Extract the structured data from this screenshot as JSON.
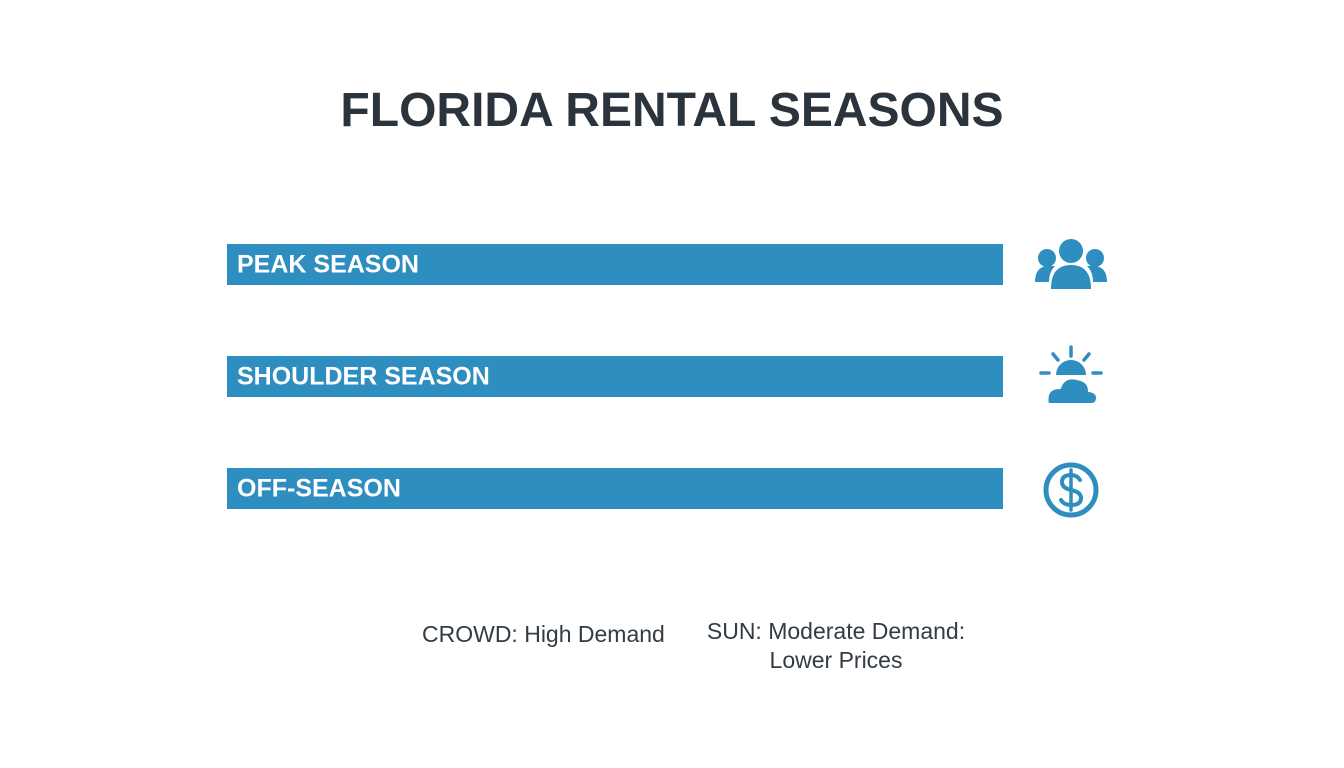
{
  "title": "FLORIDA RENTAL SEASONS",
  "rows": [
    {
      "label": "PEAK SEASON"
    },
    {
      "label": "SHOULDER SEASON"
    },
    {
      "label": "OFF-SEASON"
    }
  ],
  "legend": [
    {
      "lines": [
        "CROWD: High Demand"
      ]
    },
    {
      "lines": [
        "SUN: Moderate Demand:",
        "Lower Prices"
      ]
    }
  ]
}
